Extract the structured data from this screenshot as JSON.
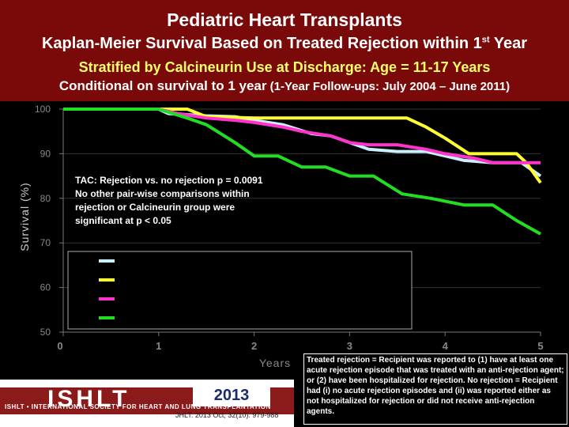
{
  "title": "Pediatric Heart Transplants",
  "subtitle": "Kaplan-Meier Survival Based on Treated Rejection within 1",
  "subtitle_sup": "st",
  "subtitle_end": " Year",
  "stratified": "Stratified by Calcineurin Use at Discharge: Age = 11-17 Years",
  "conditional_main": "Conditional on survival to 1 year",
  "conditional_detail": " (1-Year Follow-ups: July 2004 – June 2011)",
  "colors": {
    "cyan": "#c8f0ff",
    "yellow": "#ffff33",
    "magenta": "#ff33cc",
    "green": "#22dd22",
    "title_bg": "#7a0a0a"
  },
  "chart_data": {
    "type": "line",
    "title": "",
    "xlabel": "Years",
    "ylabel": "Survival (%)",
    "xlim": [
      0,
      5
    ],
    "ylim": [
      50,
      100
    ],
    "xticks": [
      "0",
      "1",
      "2",
      "3",
      "4",
      "5"
    ],
    "yticks": [
      "50",
      "60",
      "70",
      "80",
      "90",
      "100"
    ],
    "annotation": [
      "TAC: Rejection vs. no rejection p = 0.0091",
      "No other pair-wise comparisons within",
      "rejection or Calcineurin group  were",
      "significant at p < 0.05"
    ],
    "series": [
      {
        "name": "",
        "color": "#c8f0ff",
        "x": [
          0,
          1,
          1.1,
          1.5,
          1.8,
          2.0,
          2.3,
          2.6,
          2.8,
          3.0,
          3.2,
          3.5,
          3.8,
          4.0,
          4.2,
          4.5,
          4.8,
          5.0
        ],
        "y": [
          100,
          100,
          99.0,
          98.5,
          98.3,
          97.5,
          96.5,
          94.5,
          94.0,
          92.5,
          91.0,
          90.5,
          90.5,
          89.5,
          88.5,
          88.0,
          88.0,
          85.0
        ]
      },
      {
        "name": "",
        "color": "#ffff33",
        "x": [
          0,
          1,
          1.3,
          1.5,
          2.0,
          2.5,
          3.0,
          3.5,
          3.6,
          3.8,
          4.0,
          4.25,
          4.5,
          4.75,
          4.85,
          5.0
        ],
        "y": [
          100,
          100,
          100,
          98.3,
          98.0,
          98.0,
          98.0,
          98.0,
          98.0,
          96.0,
          93.5,
          90.0,
          90.0,
          90.0,
          88.0,
          83.5
        ]
      },
      {
        "name": "",
        "color": "#ff33cc",
        "x": [
          0,
          1,
          1.2,
          1.5,
          1.8,
          2.0,
          2.3,
          2.5,
          2.8,
          3.0,
          3.2,
          3.5,
          3.8,
          4.0,
          4.3,
          4.5,
          4.8,
          5.0
        ],
        "y": [
          100,
          100,
          99.0,
          98.0,
          97.5,
          97.0,
          96.0,
          95.0,
          94.0,
          92.5,
          92.0,
          92.0,
          91.0,
          90.0,
          89.0,
          88.0,
          88.0,
          88.0
        ]
      },
      {
        "name": "",
        "color": "#22dd22",
        "x": [
          0,
          1,
          1.3,
          1.5,
          1.8,
          2.0,
          2.25,
          2.5,
          2.75,
          3.0,
          3.25,
          3.55,
          3.85,
          4.2,
          4.5,
          4.75,
          5.0
        ],
        "y": [
          100,
          100,
          98.0,
          96.5,
          92.5,
          89.5,
          89.5,
          87.0,
          87.0,
          85.0,
          85.0,
          81.0,
          80.0,
          78.5,
          78.5,
          75.0,
          72.0
        ]
      }
    ]
  },
  "footnote": "Treated rejection = Recipient was reported to (1) have at least one acute rejection episode that was treated with an  anti-rejection agent; or (2) have been hospitalized for rejection. No rejection  = Recipient had (i) no acute rejection episodes and (ii) was reported either as not hospitalized for rejection or did not receive anti-rejection agents.",
  "logo": {
    "name": "ISHLT",
    "tagline": "ISHLT • INTERNATIONAL SOCIETY FOR HEART AND LUNG TRANSPLANTATION",
    "year": "2013",
    "citation": "JHLT. 2013 Oct; 32(10): 979-988"
  }
}
